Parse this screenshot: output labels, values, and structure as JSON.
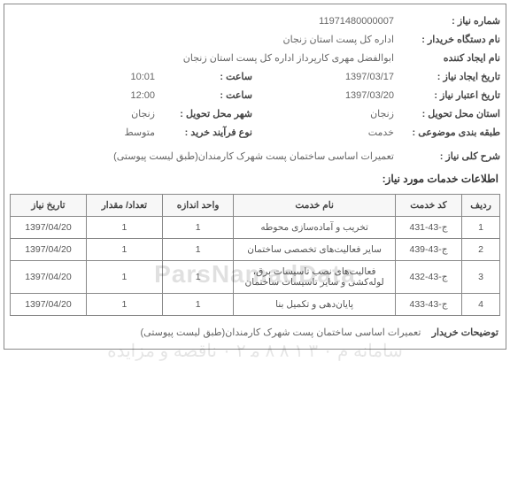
{
  "header": {
    "reqNo_label": "شماره نیاز :",
    "reqNo_value": "11971480000007",
    "buyer_label": "نام دستگاه خریدار :",
    "buyer_value": "اداره کل پست استان زنجان",
    "creator_label": "نام ایجاد کننده",
    "creator_value": "ابوالفضل مهری کارپرداز اداره کل پست استان زنجان",
    "createDate_label": "تاریخ ایجاد نیاز :",
    "createDate_value": "1397/03/17",
    "createTime_label": "ساعت :",
    "createTime_value": "10:01",
    "validDate_label": "تاریخ اعتبار نیاز :",
    "validDate_value": "1397/03/20",
    "validTime_label": "ساعت :",
    "validTime_value": "12:00",
    "province_label": "استان محل تحویل :",
    "province_value": "زنجان",
    "city_label": "شهر محل تحویل :",
    "city_value": "زنجان",
    "subject_label": "طبقه بندی موضوعی :",
    "subject_value": "خدمت",
    "process_label": "نوع فرآیند خرید :",
    "process_value": "متوسط",
    "desc_label": "شرح کلی نیاز :",
    "desc_value": "تعمیرات اساسی ساختمان پست شهرک کارمندان(طبق لیست پیوستی)"
  },
  "section_title": "اطلاعات خدمات مورد نیاز:",
  "table": {
    "headers": {
      "idx": "ردیف",
      "code": "کد خدمت",
      "name": "نام خدمت",
      "unit": "واحد اندازه",
      "qty": "تعداد/ مقدار",
      "date": "تاریخ نیاز"
    },
    "rows": [
      {
        "idx": "1",
        "code": "ج-43-431",
        "name": "تخریب و آماده‌سازی محوطه",
        "unit": "1",
        "qty": "1",
        "date": "1397/04/20"
      },
      {
        "idx": "2",
        "code": "ج-43-439",
        "name": "سایر فعالیت‌های تخصصی ساختمان",
        "unit": "1",
        "qty": "1",
        "date": "1397/04/20"
      },
      {
        "idx": "3",
        "code": "ج-43-432",
        "name": "فعالیت‌های نصب تاسیسات برق، لوله‌کشی و سایر تاسیسات ساختمان",
        "unit": "1",
        "qty": "1",
        "date": "1397/04/20"
      },
      {
        "idx": "4",
        "code": "ج-43-433",
        "name": "پایان‌دهی و تکمیل بنا",
        "unit": "1",
        "qty": "1",
        "date": "1397/04/20"
      }
    ]
  },
  "footer": {
    "label": "توضیحات خریدار",
    "value": "تعمیرات اساسی ساختمان پست شهرک کارمندان(طبق لیست پیوستی)"
  },
  "watermark": {
    "line1": "ParsNamadData",
    "line2": "سامانه م ٠ ٣ ١ ٨ ٨ ﻣ ٢ ٠ ناقصه و مزایده"
  }
}
